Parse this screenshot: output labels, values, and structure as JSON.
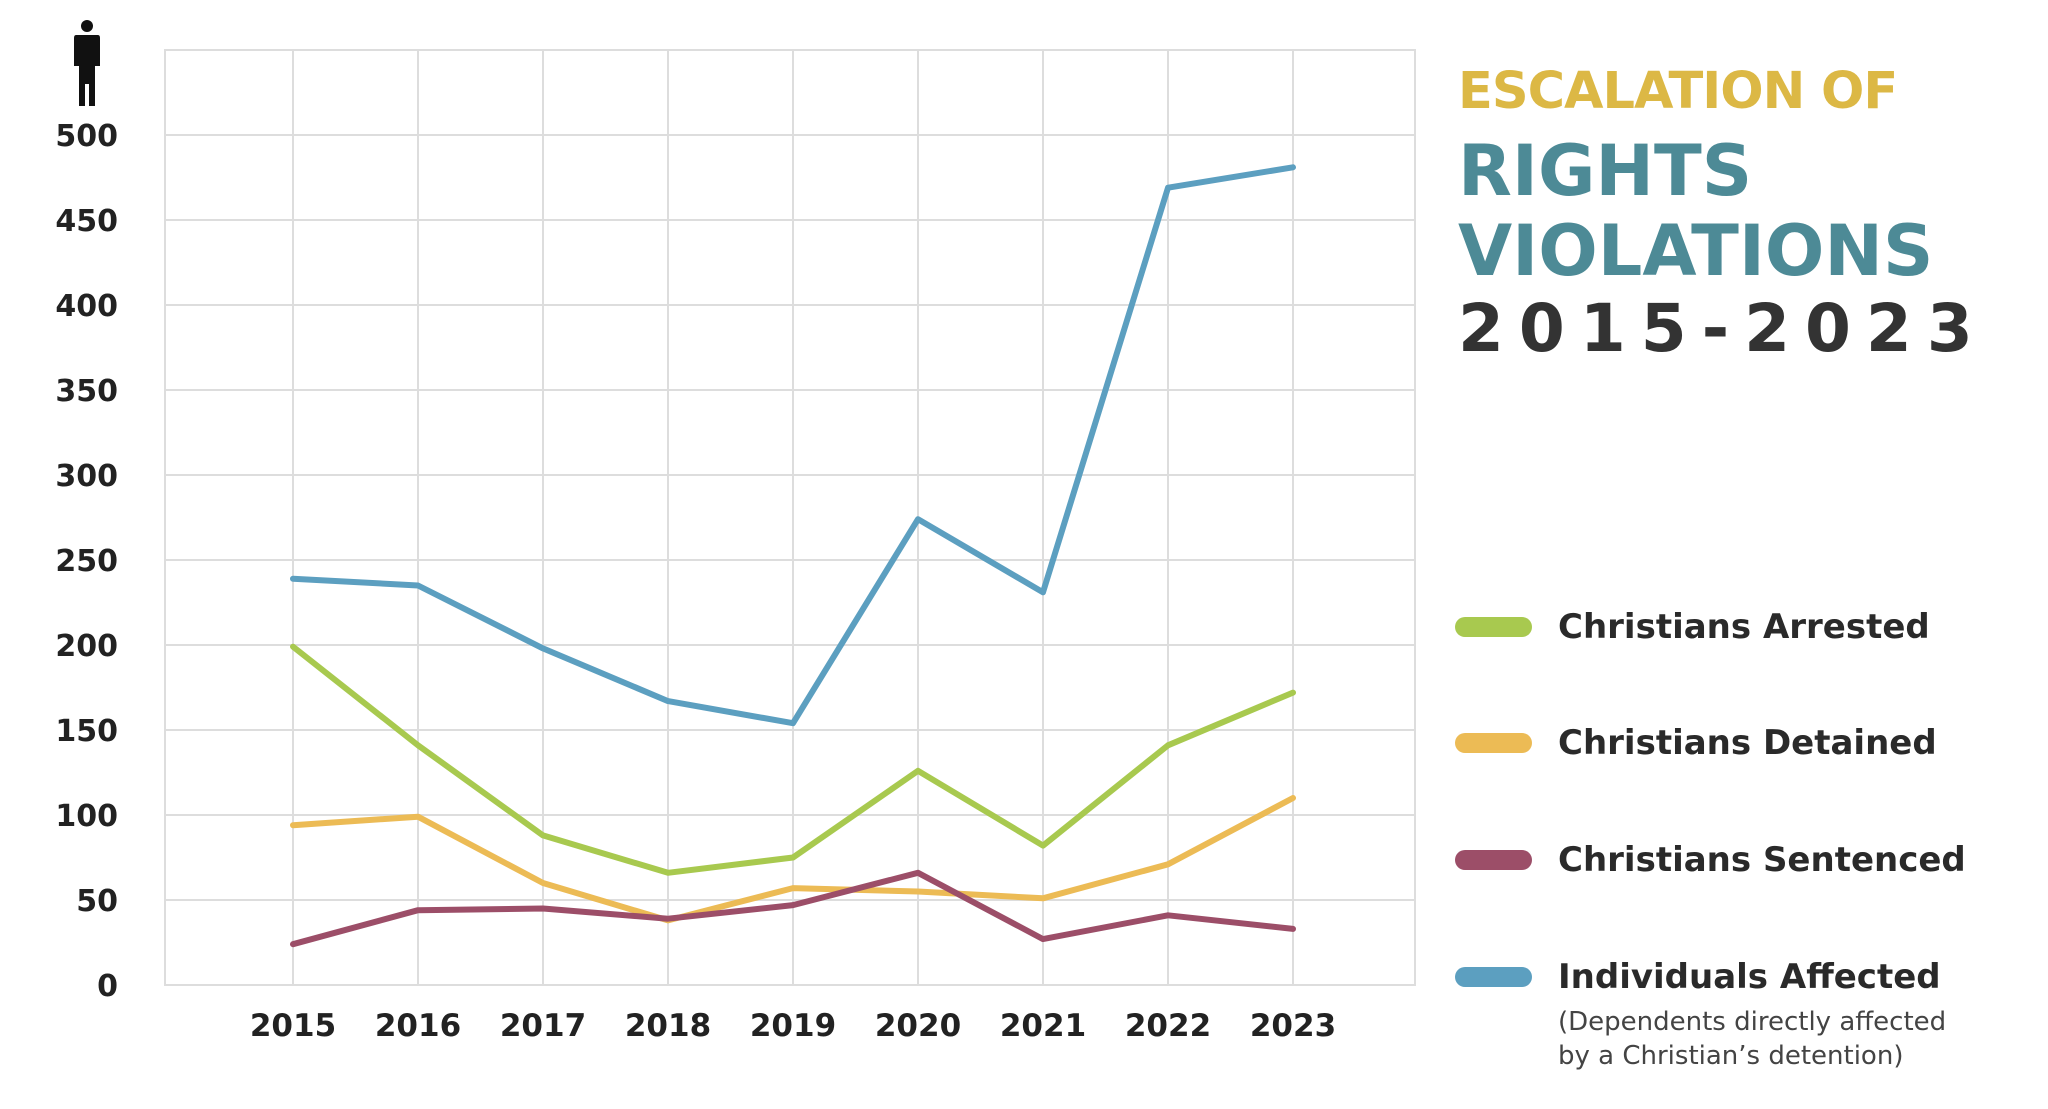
{
  "title": {
    "line1": "ESCALATION OF",
    "line2": "RIGHTS",
    "line3": "VIOLATIONS",
    "line4": "2015-2023",
    "colors": {
      "line1": "#dcb845",
      "line2": "#4d8a96",
      "line3": "#4d8a96",
      "line4": "#333333"
    }
  },
  "legend": {
    "note_line1": "(Dependents directly affected",
    "note_line2": "by a Christian’s detention)"
  },
  "chart_data": {
    "type": "line",
    "title": "ESCALATION OF RIGHTS VIOLATIONS 2015-2023",
    "xlabel": "",
    "ylabel": "person-icon",
    "x": [
      "2015",
      "2016",
      "2017",
      "2018",
      "2019",
      "2020",
      "2021",
      "2022",
      "2023"
    ],
    "ylim": [
      0,
      550
    ],
    "yticks": [
      0,
      50,
      100,
      150,
      200,
      250,
      300,
      350,
      400,
      450,
      500
    ],
    "grid": true,
    "series": [
      {
        "name": "Christians Arrested",
        "color": "#a8c94f",
        "values": [
          199,
          141,
          88,
          66,
          75,
          126,
          82,
          141,
          172
        ]
      },
      {
        "name": "Christians Detained",
        "color": "#ecbb55",
        "values": [
          94,
          99,
          60,
          38,
          57,
          55,
          51,
          71,
          110
        ]
      },
      {
        "name": "Christians Sentenced",
        "color": "#9c4e68",
        "values": [
          24,
          44,
          45,
          39,
          47,
          66,
          27,
          41,
          33
        ]
      },
      {
        "name": "Individuals Affected",
        "color": "#5c9fc0",
        "values": [
          239,
          235,
          198,
          167,
          154,
          274,
          231,
          469,
          481
        ]
      }
    ]
  }
}
